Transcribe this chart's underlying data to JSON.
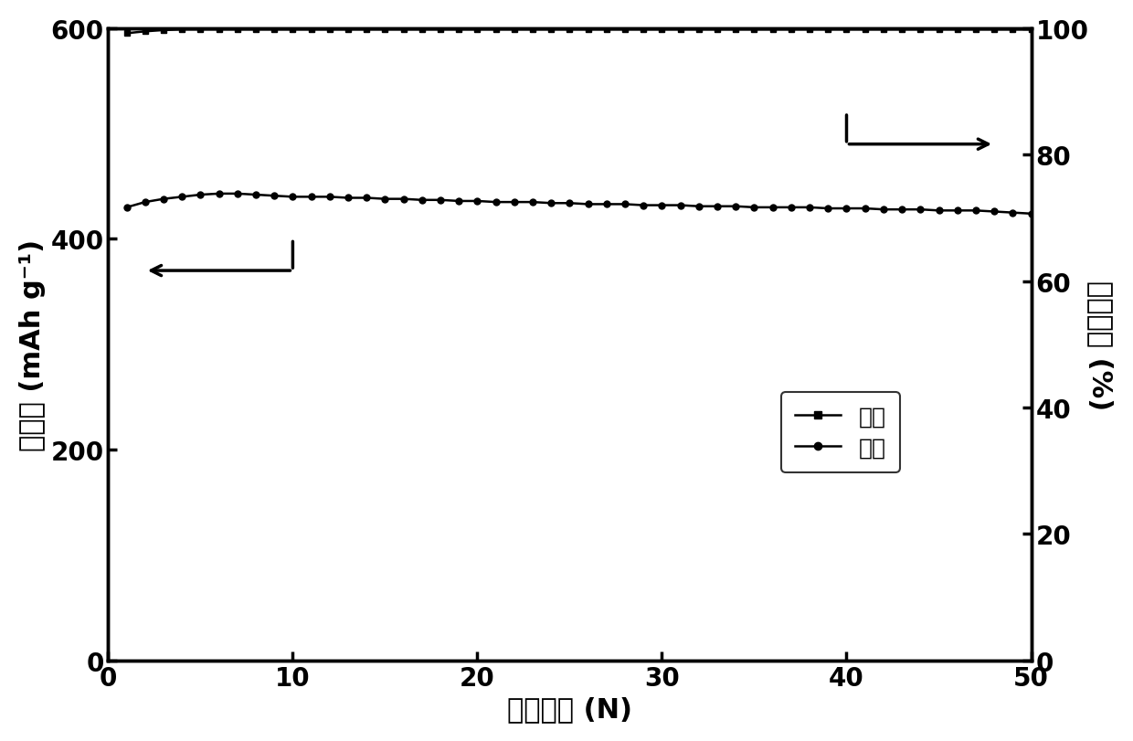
{
  "title": "",
  "xlabel": "循环次数 (N)",
  "ylabel_left": "比容量 (mAh g⁻¹)",
  "ylabel_right": "库仓效率 (%)",
  "xlim": [
    0,
    50
  ],
  "ylim_left": [
    0,
    600
  ],
  "ylim_right": [
    0,
    100
  ],
  "xticks": [
    0,
    10,
    20,
    30,
    40,
    50
  ],
  "yticks_left": [
    0,
    200,
    400,
    600
  ],
  "yticks_right": [
    0,
    20,
    40,
    60,
    80,
    100
  ],
  "legend_labels": [
    "充电",
    "放电"
  ],
  "charge_color": "#000000",
  "discharge_color": "#000000",
  "background_color": "#ffffff",
  "charge_marker": "s",
  "discharge_marker": "o",
  "linewidth": 1.8,
  "markersize": 5,
  "charge_x": [
    1,
    2,
    3,
    4,
    5,
    6,
    7,
    8,
    9,
    10,
    11,
    12,
    13,
    14,
    15,
    16,
    17,
    18,
    19,
    20,
    21,
    22,
    23,
    24,
    25,
    26,
    27,
    28,
    29,
    30,
    31,
    32,
    33,
    34,
    35,
    36,
    37,
    38,
    39,
    40,
    41,
    42,
    43,
    44,
    45,
    46,
    47,
    48,
    49,
    50
  ],
  "efficiency_y": [
    99.2,
    99.5,
    99.7,
    99.8,
    99.8,
    99.8,
    99.8,
    99.8,
    99.8,
    99.8,
    99.8,
    99.8,
    99.8,
    99.8,
    99.8,
    99.8,
    99.8,
    99.8,
    99.8,
    99.8,
    99.8,
    99.8,
    99.8,
    99.8,
    99.8,
    99.8,
    99.8,
    99.8,
    99.8,
    99.8,
    99.8,
    99.8,
    99.8,
    99.8,
    99.8,
    99.8,
    99.8,
    99.8,
    99.8,
    99.8,
    99.8,
    99.8,
    99.8,
    99.8,
    99.8,
    99.8,
    99.8,
    99.8,
    99.8,
    99.8
  ],
  "discharge_x": [
    1,
    2,
    3,
    4,
    5,
    6,
    7,
    8,
    9,
    10,
    11,
    12,
    13,
    14,
    15,
    16,
    17,
    18,
    19,
    20,
    21,
    22,
    23,
    24,
    25,
    26,
    27,
    28,
    29,
    30,
    31,
    32,
    33,
    34,
    35,
    36,
    37,
    38,
    39,
    40,
    41,
    42,
    43,
    44,
    45,
    46,
    47,
    48,
    49,
    50
  ],
  "discharge_y": [
    430,
    435,
    438,
    440,
    442,
    443,
    443,
    442,
    441,
    440,
    440,
    440,
    439,
    439,
    438,
    438,
    437,
    437,
    436,
    436,
    435,
    435,
    435,
    434,
    434,
    433,
    433,
    433,
    432,
    432,
    432,
    431,
    431,
    431,
    430,
    430,
    430,
    430,
    429,
    429,
    429,
    428,
    428,
    428,
    427,
    427,
    427,
    426,
    425,
    424
  ],
  "tick_fontsize": 20,
  "label_fontsize": 22,
  "legend_fontsize": 18
}
